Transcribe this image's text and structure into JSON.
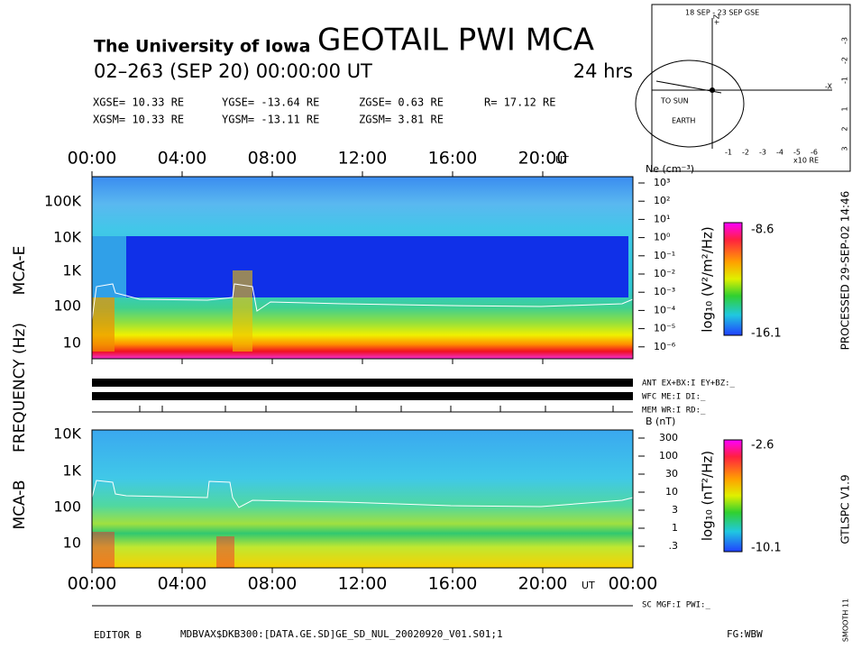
{
  "header": {
    "institution": "The University of Iowa",
    "title": "GEOTAIL PWI MCA",
    "date": "02–263 (SEP 20) 00:00:00 UT",
    "duration": "24 hrs",
    "coords": [
      [
        "XGSE= 10.33 RE",
        "YGSE= -13.64 RE",
        "ZGSE= 0.63 RE",
        "R= 17.12 RE"
      ],
      [
        "XGSM= 10.33 RE",
        "YGSM= -13.11 RE",
        "ZGSM= 3.81 RE"
      ]
    ]
  },
  "orbit": {
    "title": "18 SEP - 23 SEP GSE",
    "sun": "TO SUN",
    "earth": "EARTH",
    "xunit": "x10 RE",
    "xlabel": "-X",
    "zlabel": "+Z",
    "xticks": [
      "-1",
      "-2",
      "-3",
      "-4",
      "-5",
      "-6"
    ],
    "yticks": [
      "-3",
      "-2",
      "-1",
      "1",
      "2",
      "3"
    ]
  },
  "time_ticks": [
    "00:00",
    "04:00",
    "08:00",
    "12:00",
    "16:00",
    "20:00"
  ],
  "ut": "UT",
  "end_tick": "00:00",
  "freq_label": "FREQUENCY (Hz)",
  "mca_e": {
    "label": "MCA-E",
    "yticks": [
      "100K",
      "10K",
      "1K",
      "100",
      "10"
    ],
    "ne_label": "Ne (cm⁻³)",
    "ne_ticks": [
      "10³",
      "10²",
      "10¹",
      "10⁰",
      "10⁻¹",
      "10⁻²",
      "10⁻³",
      "10⁻⁴",
      "10⁻⁵",
      "10⁻⁶"
    ],
    "cbar_label": "log₁₀ (V²/m²/Hz)",
    "cbar_max": "-8.6",
    "cbar_min": "-16.1"
  },
  "status": [
    "ANT EX+BX:I EY+BZ:_",
    "WFC ME:I   DI:_",
    "MEM WR:I   RD:_"
  ],
  "mca_b": {
    "label": "MCA-B",
    "yticks": [
      "10K",
      "1K",
      "100",
      "10"
    ],
    "b_label": "B (nT)",
    "b_ticks": [
      "300",
      "100",
      "30",
      "10",
      "3",
      "1",
      ".3"
    ],
    "cbar_label": "log₁₀ (nT²/Hz)",
    "cbar_max": "-2.6",
    "cbar_min": "-10.1"
  },
  "footer": {
    "sc": "SC MGF:I   PWI:_",
    "editor": "EDITOR B",
    "file": "MDBVAX$DKB300:[DATA.GE.SD]GE_SD_NUL_20020920_V01.S01;1",
    "fg": "FG:WBW"
  },
  "side": {
    "processed": "PROCESSED 29-SEP-02  14:46",
    "version": "GTLSPC  V1.9",
    "smooth": "SMOOTH 11"
  }
}
